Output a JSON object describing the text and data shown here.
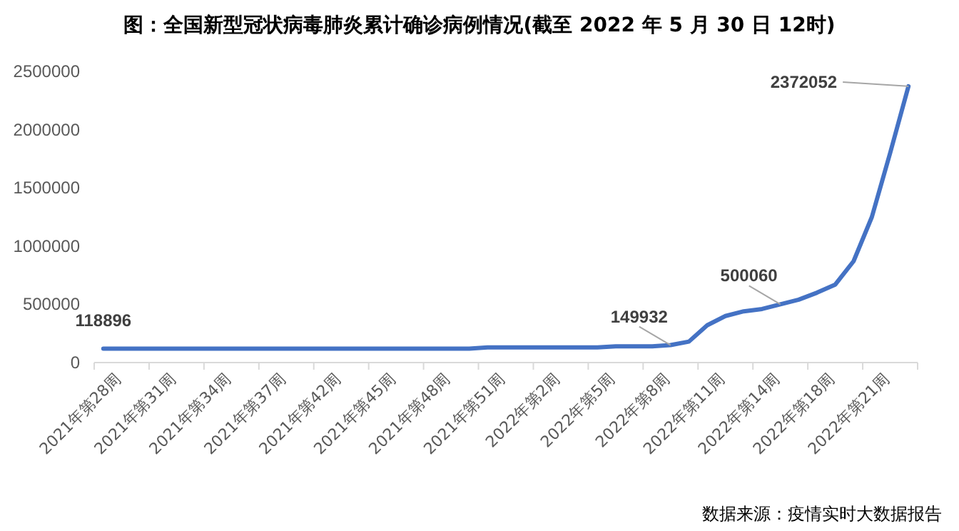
{
  "chart_data": {
    "type": "line",
    "title": "图：全国新型冠状病毒肺炎累计确诊病例情况(截至 2022 年 5 月 30 日 12时)",
    "categories": [
      null,
      "2021年第28周",
      null,
      null,
      "2021年第31周",
      null,
      null,
      "2021年第34周",
      null,
      null,
      "2021年第37周",
      null,
      null,
      "2021年第42周",
      null,
      null,
      "2021年第45周",
      null,
      null,
      "2021年第48周",
      null,
      null,
      "2021年第51周",
      null,
      null,
      "2022年第2周",
      null,
      null,
      "2022年第5周",
      null,
      null,
      "2022年第8周",
      null,
      null,
      "2022年第11周",
      null,
      null,
      "2022年第14周",
      null,
      null,
      "2022年第18周",
      null,
      null,
      "2022年第21周",
      null
    ],
    "series": [
      {
        "color": "#4472c4",
        "values": [
          118896,
          120000,
          120000,
          120000,
          120000,
          120000,
          120000,
          120000,
          120000,
          120000,
          120000,
          120000,
          120000,
          120000,
          120000,
          120000,
          120000,
          120000,
          120000,
          120000,
          120000,
          130000,
          130000,
          130000,
          130000,
          130000,
          130000,
          130000,
          140000,
          140000,
          140000,
          149932,
          180000,
          320000,
          400000,
          440000,
          460000,
          500060,
          540000,
          600000,
          670000,
          870000,
          1250000,
          1800000,
          2372052
        ],
        "value_labels": [
          "118896",
          null,
          null,
          null,
          null,
          null,
          null,
          null,
          null,
          null,
          null,
          null,
          null,
          null,
          null,
          null,
          null,
          null,
          null,
          null,
          null,
          null,
          null,
          null,
          null,
          null,
          null,
          null,
          null,
          null,
          null,
          "149932",
          null,
          null,
          null,
          null,
          null,
          "500060",
          null,
          null,
          null,
          null,
          null,
          null,
          "2372052"
        ]
      }
    ],
    "ylim": [
      0,
      2500000
    ],
    "yticks": [
      0,
      500000,
      1000000,
      1500000,
      2000000,
      2500000
    ],
    "grid": false,
    "marker": "none",
    "line_style": "solid",
    "annotations": [
      "数据来源：疫情实时大数据报告"
    ]
  }
}
